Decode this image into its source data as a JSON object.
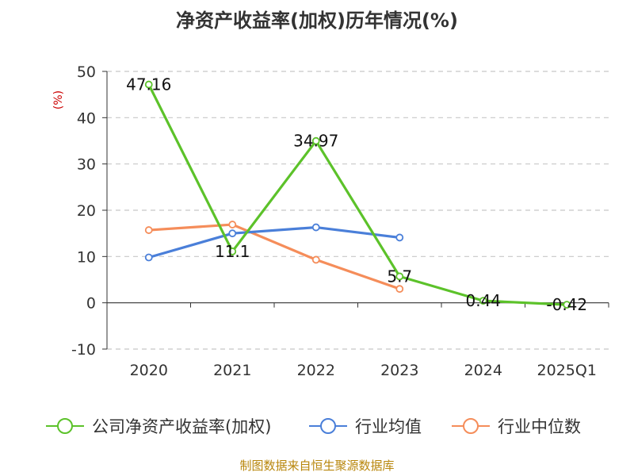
{
  "chart_data": {
    "type": "line",
    "title": "净资产收益率(加权)历年情况(%)",
    "ylabel": "(%)",
    "xlabel": "",
    "ylim": [
      -10,
      50
    ],
    "yticks": [
      50,
      40,
      30,
      20,
      10,
      0,
      -10
    ],
    "categories": [
      "2020",
      "2021",
      "2022",
      "2023",
      "2024",
      "2025Q1"
    ],
    "grid": true,
    "legend_position": "bottom",
    "series": [
      {
        "name": "公司净资产收益率(加权)",
        "color": "#5cc22a",
        "values": [
          47.16,
          11.1,
          34.97,
          5.7,
          0.44,
          -0.42
        ],
        "labels": [
          "47.16",
          "11.1",
          "34.97",
          "5.7",
          "0.44",
          "-0.42"
        ]
      },
      {
        "name": "行业均值",
        "color": "#4a7fd9",
        "values": [
          9.8,
          15.0,
          16.3,
          14.1,
          null,
          null
        ]
      },
      {
        "name": "行业中位数",
        "color": "#f58d5a",
        "values": [
          15.7,
          16.9,
          9.3,
          3.0,
          null,
          null
        ]
      }
    ],
    "source": "制图数据来自恒生聚源数据库"
  }
}
